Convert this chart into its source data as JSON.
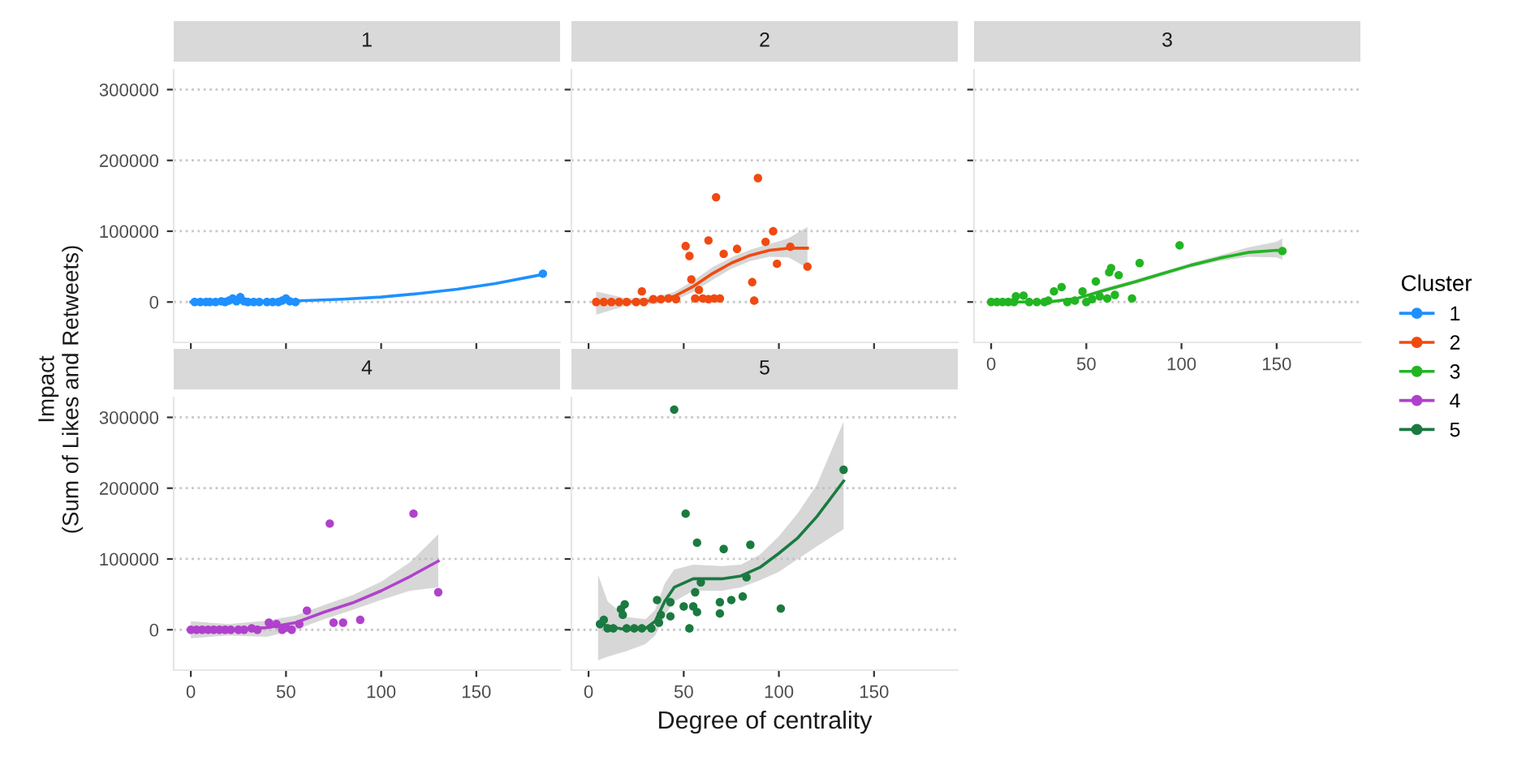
{
  "chart_data": [
    {
      "type": "scatter",
      "title": "1",
      "ylabel": "Impact\n(Sum of Likes and Retweets)",
      "xlim": [
        -9,
        194
      ],
      "ylim": [
        -57000,
        328000
      ],
      "xticks": [
        0,
        50,
        100,
        150
      ],
      "yticks": [
        0,
        100000,
        200000,
        300000
      ],
      "grid": "y",
      "tick_labels": "y",
      "series": [
        {
          "name": "1",
          "marker": "circle",
          "color": "#1e90ff",
          "x": [
            2,
            5,
            8,
            10,
            13,
            16,
            18,
            20,
            22,
            24,
            26,
            28,
            30,
            33,
            36,
            40,
            43,
            46,
            48,
            50,
            52,
            55,
            185
          ],
          "values": [
            0,
            0,
            0,
            0,
            0,
            1000,
            0,
            2000,
            5000,
            1000,
            7000,
            1000,
            0,
            0,
            0,
            0,
            0,
            0,
            2000,
            5000,
            1000,
            0,
            40000
          ]
        },
        {
          "type": "line",
          "color": "#1e90ff",
          "x": [
            0,
            20,
            40,
            60,
            80,
            100,
            120,
            140,
            160,
            185
          ],
          "values": [
            0,
            0,
            1000,
            2000,
            4000,
            7000,
            12000,
            18000,
            26000,
            39000
          ]
        }
      ]
    },
    {
      "type": "scatter",
      "title": "2",
      "xlim": [
        -9,
        194
      ],
      "ylim": [
        -57000,
        328000
      ],
      "xticks": [
        0,
        50,
        100,
        150
      ],
      "yticks": [
        0,
        100000,
        200000,
        300000
      ],
      "grid": "y",
      "tick_labels": false,
      "series": [
        {
          "name": "2",
          "marker": "circle",
          "color": "#f04a10",
          "x": [
            4,
            8,
            12,
            16,
            20,
            25,
            29,
            28,
            34,
            38,
            42,
            46,
            51,
            53,
            54,
            56,
            58,
            60,
            63,
            63,
            66,
            67,
            69,
            71,
            78,
            86,
            87,
            89,
            93,
            97,
            99,
            106,
            115
          ],
          "values": [
            0,
            0,
            0,
            0,
            0,
            0,
            0,
            15000,
            4000,
            4000,
            5000,
            4000,
            79000,
            65000,
            32000,
            5000,
            17000,
            5000,
            87000,
            4000,
            5000,
            148000,
            5000,
            68000,
            75000,
            28000,
            2000,
            175000,
            85000,
            100000,
            54000,
            78000,
            50000
          ]
        },
        {
          "type": "line",
          "color": "#f04a10",
          "x": [
            4,
            20,
            35,
            45,
            55,
            65,
            75,
            85,
            95,
            105,
            115
          ],
          "values": [
            0,
            0,
            2000,
            8000,
            22000,
            40000,
            55000,
            66000,
            73000,
            76000,
            76000
          ],
          "lower": [
            -18000,
            -5000,
            -3000,
            2000,
            14000,
            31000,
            47000,
            58000,
            64000,
            63000,
            48000
          ],
          "upper": [
            15000,
            5000,
            7000,
            14000,
            30000,
            49000,
            63000,
            74000,
            82000,
            90000,
            106000
          ]
        }
      ]
    },
    {
      "type": "scatter",
      "title": "3",
      "xlim": [
        -9,
        194
      ],
      "ylim": [
        -57000,
        328000
      ],
      "xticks": [
        0,
        50,
        100,
        150
      ],
      "yticks": [
        0,
        100000,
        200000,
        300000
      ],
      "grid": "y",
      "tick_labels": "x",
      "legend": "right",
      "legend_title": "Cluster",
      "series": [
        {
          "name": "3",
          "marker": "circle",
          "color": "#22b522",
          "x": [
            0,
            3,
            6,
            9,
            12,
            13,
            17,
            20,
            24,
            28,
            30,
            33,
            37,
            40,
            44,
            48,
            50,
            53,
            55,
            57,
            61,
            62,
            63,
            65,
            67,
            74,
            78,
            99,
            153
          ],
          "values": [
            0,
            0,
            0,
            0,
            0,
            8000,
            9000,
            0,
            0,
            0,
            2000,
            15000,
            21000,
            0,
            2000,
            15000,
            0,
            4000,
            29000,
            8000,
            5000,
            42000,
            48000,
            10000,
            38000,
            5000,
            55000,
            80000,
            72000
          ]
        },
        {
          "type": "line",
          "color": "#22b522",
          "x": [
            0,
            30,
            45,
            60,
            75,
            90,
            105,
            120,
            135,
            150,
            153
          ],
          "values": [
            0,
            0,
            5000,
            17000,
            28000,
            40000,
            52000,
            62000,
            70000,
            73000,
            72000
          ],
          "lower": [
            -2000,
            -1500,
            3000,
            14000,
            25000,
            37000,
            49000,
            58000,
            64000,
            63000,
            60000
          ],
          "upper": [
            2000,
            2500,
            7000,
            20000,
            31000,
            43000,
            55000,
            66000,
            77000,
            85000,
            90000
          ]
        }
      ]
    },
    {
      "type": "scatter",
      "title": "4",
      "xlim": [
        -9,
        194
      ],
      "ylim": [
        -57000,
        328000
      ],
      "xticks": [
        0,
        50,
        100,
        150
      ],
      "yticks": [
        0,
        100000,
        200000,
        300000
      ],
      "grid": "y",
      "series": [
        {
          "name": "4",
          "marker": "circle",
          "color": "#b041cc",
          "x": [
            0,
            3,
            6,
            9,
            12,
            15,
            18,
            21,
            25,
            28,
            32,
            35,
            41,
            45,
            48,
            50,
            53,
            57,
            61,
            73,
            75,
            80,
            89,
            117,
            130
          ],
          "values": [
            0,
            0,
            0,
            0,
            0,
            0,
            0,
            0,
            0,
            0,
            2000,
            0,
            10000,
            8000,
            0,
            3000,
            0,
            8000,
            27000,
            150000,
            10000,
            10000,
            14000,
            164000,
            53000
          ]
        },
        {
          "type": "line",
          "color": "#b041cc",
          "x": [
            0,
            20,
            40,
            55,
            70,
            85,
            100,
            115,
            130
          ],
          "values": [
            0,
            0,
            3000,
            10000,
            25000,
            38000,
            55000,
            75000,
            97000
          ],
          "lower": [
            -12000,
            -8000,
            -10000,
            0,
            15000,
            28000,
            42000,
            55000,
            60000
          ],
          "upper": [
            12000,
            8000,
            13000,
            20000,
            35000,
            49000,
            68000,
            95000,
            135000
          ]
        }
      ]
    },
    {
      "type": "scatter",
      "title": "5",
      "xlabel": "Degree of centrality",
      "xlim": [
        -9,
        194
      ],
      "ylim": [
        -57000,
        328000
      ],
      "xticks": [
        0,
        50,
        100,
        150
      ],
      "yticks": [
        0,
        100000,
        200000,
        300000
      ],
      "grid": "y",
      "tick_labels": "x",
      "series": [
        {
          "name": "5",
          "marker": "circle",
          "color": "#1a7a40",
          "x": [
            6,
            8,
            10,
            13,
            17,
            18,
            19,
            20,
            24,
            28,
            33,
            36,
            37,
            38,
            43,
            43,
            45,
            50,
            51,
            53,
            55,
            56,
            57,
            57,
            59,
            69,
            69,
            71,
            75,
            81,
            83,
            85,
            101,
            134
          ],
          "values": [
            8000,
            14000,
            2000,
            2000,
            29000,
            21000,
            36000,
            2000,
            2000,
            2000,
            2000,
            42000,
            10000,
            21000,
            39000,
            19000,
            311000,
            33000,
            164000,
            2000,
            33000,
            53000,
            25000,
            123000,
            67000,
            39000,
            23000,
            114000,
            42000,
            47000,
            74000,
            120000,
            30000,
            226000
          ]
        },
        {
          "type": "line",
          "color": "#1a7a40",
          "x": [
            5,
            10,
            20,
            30,
            35,
            40,
            45,
            55,
            70,
            80,
            90,
            100,
            110,
            120,
            134
          ],
          "values": [
            10000,
            5000,
            0,
            2000,
            12000,
            40000,
            60000,
            72000,
            72000,
            76000,
            88000,
            108000,
            130000,
            160000,
            210000
          ],
          "lower": [
            -43000,
            -38000,
            -30000,
            -20000,
            -8000,
            20000,
            40000,
            55000,
            55000,
            60000,
            70000,
            82000,
            100000,
            118000,
            142000
          ],
          "upper": [
            78000,
            40000,
            18000,
            15000,
            28000,
            65000,
            85000,
            92000,
            90000,
            92000,
            106000,
            132000,
            165000,
            205000,
            294000
          ]
        }
      ]
    }
  ]
}
